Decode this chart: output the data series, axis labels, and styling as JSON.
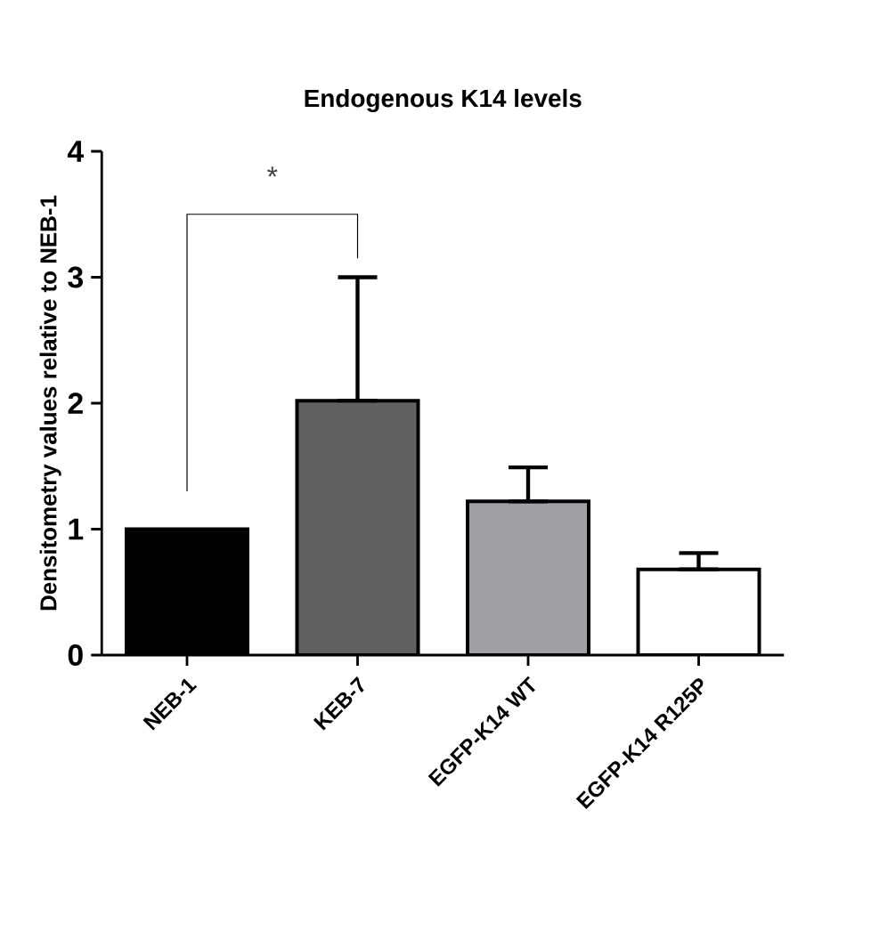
{
  "chart_data": {
    "type": "bar",
    "title": "Endogenous K14 levels",
    "ylabel": "Densitometry values relative to NEB-1",
    "categories": [
      "NEB-1",
      "KEB-7",
      "EGFP-K14 WT",
      "EGFP-K14 R125P"
    ],
    "values": [
      1.0,
      2.02,
      1.22,
      0.68
    ],
    "colors": [
      "#000000",
      "#616161",
      "#a0a0a4",
      "#ffffff"
    ],
    "errors": [
      null,
      [
        2.02,
        3.0
      ],
      [
        1.22,
        1.49
      ],
      [
        0.68,
        0.81
      ]
    ],
    "ylim": [
      0,
      4
    ],
    "yticks": [
      0,
      1,
      2,
      3,
      4
    ],
    "annotations": [
      "*"
    ],
    "grid": false
  }
}
